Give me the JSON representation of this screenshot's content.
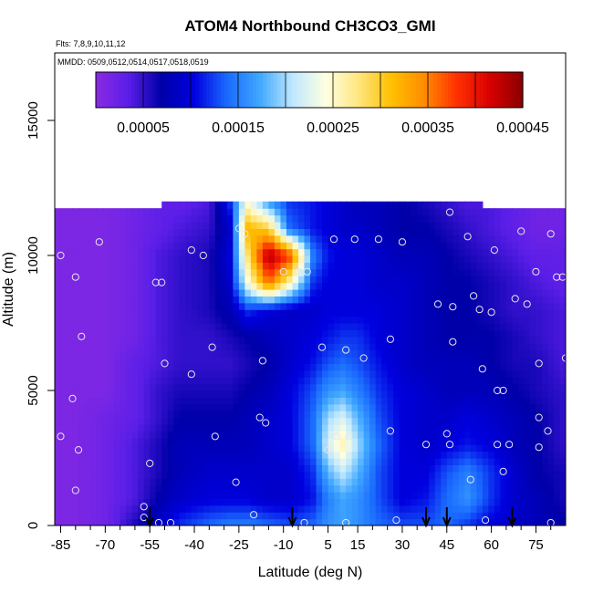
{
  "chart_data": {
    "type": "heatmap",
    "title": "ATOM4 Northbound CH3CO3_GMI",
    "flights_label": "Flts: 7,8,9,10,11,12",
    "dates_label": "MMDD: 0509,0512,0514,0517,0518,0519",
    "xlabel": "Latitude (deg N)",
    "ylabel": "Altitude (m)",
    "xlim": [
      -87,
      85
    ],
    "ylim": [
      0,
      17500
    ],
    "x_ticks": [
      -85,
      -70,
      -55,
      -40,
      -25,
      -10,
      5,
      15,
      30,
      45,
      60,
      75
    ],
    "x_minor_ticks": [
      -80,
      -75,
      -65,
      -60,
      -50,
      -45,
      -35,
      -30,
      -20,
      -15,
      -5,
      0,
      10,
      20,
      25,
      35,
      40,
      50,
      55,
      65,
      70,
      80
    ],
    "y_ticks": [
      0,
      5000,
      10000,
      15000
    ],
    "colorbar": {
      "min": 0.0,
      "max": 0.00045,
      "tick_values": [
        5e-05,
        0.00015,
        0.00025,
        0.00035,
        0.00045
      ],
      "tick_labels": [
        "0.00005",
        "0.00015",
        "0.00025",
        "0.00035",
        "0.00045"
      ],
      "colors": [
        "#8a2be2",
        "#5a1ee8",
        "#0000a8",
        "#0000e0",
        "#1a6aff",
        "#40a8ff",
        "#bfe8ff",
        "#ffffe0",
        "#ffe680",
        "#ffc000",
        "#ff8c00",
        "#ff3000",
        "#d80000",
        "#8a0000"
      ]
    },
    "grid_lat": [
      -87,
      -80,
      -70,
      -60,
      -52,
      -45,
      -35,
      -28,
      -22,
      -15,
      -8,
      0,
      5,
      10,
      15,
      22,
      30,
      38,
      45,
      52,
      60,
      68,
      75,
      85
    ],
    "grid_alt": [
      0,
      1000,
      2000,
      3000,
      4000,
      5000,
      6000,
      7000,
      8000,
      9000,
      10000,
      11000,
      12000
    ],
    "values": [
      [
        1e-05,
        1e-05,
        2e-05,
        6e-05,
        9e-05,
        0.00012,
        0.00014,
        0.00015,
        0.00015,
        0.00014,
        0.00013,
        0.00014,
        0.00016,
        0.00017,
        0.00016,
        0.00014,
        0.00013,
        0.00013,
        0.00014,
        0.00012,
        0.0001,
        9e-05,
        8e-05,
        7e-05
      ],
      [
        1e-05,
        1e-05,
        2e-05,
        4e-05,
        7e-05,
        9e-05,
        0.0001,
        0.0001,
        0.0001,
        9e-05,
        9e-05,
        0.00011,
        0.00015,
        0.00017,
        0.00016,
        0.00013,
        0.0001,
        0.00011,
        0.00014,
        0.00016,
        0.00012,
        9e-05,
        8e-05,
        6e-05
      ],
      [
        1e-05,
        1e-05,
        2e-05,
        4e-05,
        6e-05,
        8e-05,
        9e-05,
        9e-05,
        9e-05,
        9e-05,
        9e-05,
        0.00012,
        0.00018,
        0.00021,
        0.00018,
        0.00013,
        0.0001,
        0.0001,
        0.00013,
        0.00015,
        0.00012,
        9e-05,
        7e-05,
        6e-05
      ],
      [
        1e-05,
        1e-05,
        2e-05,
        4e-05,
        6e-05,
        8e-05,
        8e-05,
        8e-05,
        8e-05,
        9e-05,
        0.0001,
        0.00014,
        0.00022,
        0.00026,
        0.0002,
        0.00014,
        0.0001,
        9e-05,
        0.0001,
        0.00011,
        0.0001,
        8e-05,
        7e-05,
        5e-05
      ],
      [
        1e-05,
        1e-05,
        2e-05,
        3e-05,
        5e-05,
        7e-05,
        7e-05,
        7e-05,
        8e-05,
        9e-05,
        0.0001,
        0.00014,
        0.0002,
        0.00022,
        0.00018,
        0.00013,
        0.0001,
        9e-05,
        9e-05,
        0.0001,
        9e-05,
        8e-05,
        7e-05,
        5e-05
      ],
      [
        1e-05,
        1e-05,
        1e-05,
        3e-05,
        5e-05,
        6e-05,
        6e-05,
        6e-05,
        7e-05,
        8e-05,
        0.0001,
        0.00013,
        0.00016,
        0.00017,
        0.00015,
        0.00012,
        0.0001,
        9e-05,
        8e-05,
        8e-05,
        8e-05,
        7e-05,
        6e-05,
        5e-05
      ],
      [
        1e-05,
        1e-05,
        1e-05,
        3e-05,
        4e-05,
        5e-05,
        5e-05,
        5e-05,
        6e-05,
        7e-05,
        9e-05,
        0.00011,
        0.00013,
        0.00014,
        0.00013,
        0.00011,
        9e-05,
        8e-05,
        8e-05,
        8e-05,
        7e-05,
        6e-05,
        6e-05,
        4e-05
      ],
      [
        1e-05,
        1e-05,
        1e-05,
        2e-05,
        4e-05,
        5e-05,
        5e-05,
        6e-05,
        7e-05,
        8e-05,
        9e-05,
        0.0001,
        0.00011,
        0.00012,
        0.00012,
        0.0001,
        9e-05,
        8e-05,
        7e-05,
        7e-05,
        7e-05,
        6e-05,
        5e-05,
        4e-05
      ],
      [
        1e-05,
        1e-05,
        1e-05,
        2e-05,
        4e-05,
        5e-05,
        6e-05,
        8e-05,
        0.00012,
        0.0001,
        9e-05,
        9e-05,
        0.0001,
        0.0001,
        0.0001,
        0.0001,
        9e-05,
        8e-05,
        7e-05,
        7e-05,
        6e-05,
        5e-05,
        5e-05,
        4e-05
      ],
      [
        1e-05,
        1e-05,
        1e-05,
        2e-05,
        4e-05,
        5e-05,
        6e-05,
        9e-05,
        0.00024,
        0.00036,
        0.00026,
        0.00012,
        0.0001,
        0.0001,
        0.0001,
        9e-05,
        9e-05,
        8e-05,
        7e-05,
        7e-05,
        6e-05,
        5e-05,
        4e-05,
        3e-05
      ],
      [
        1e-05,
        1e-05,
        1e-05,
        2e-05,
        4e-05,
        5e-05,
        6e-05,
        0.0001,
        0.00028,
        0.00044,
        0.00038,
        0.00015,
        0.00011,
        0.0001,
        0.0001,
        9e-05,
        8e-05,
        8e-05,
        7e-05,
        6e-05,
        5e-05,
        4e-05,
        3e-05,
        3e-05
      ],
      [
        1e-05,
        1e-05,
        1e-05,
        2e-05,
        3e-05,
        4e-05,
        5e-05,
        9e-05,
        0.00032,
        0.0003,
        0.00014,
        0.00011,
        0.0001,
        9e-05,
        9e-05,
        8e-05,
        7e-05,
        7e-05,
        6e-05,
        5e-05,
        4e-05,
        3e-05,
        2e-05,
        2e-05
      ],
      [
        null,
        null,
        null,
        null,
        null,
        3e-05,
        4e-05,
        0.00012,
        0.00024,
        0.00016,
        0.00012,
        0.00011,
        0.0001,
        9e-05,
        8e-05,
        8e-05,
        7e-05,
        6e-05,
        5e-05,
        4e-05,
        null,
        null,
        null,
        null
      ]
    ],
    "sample_points": [
      [
        -85,
        10000
      ],
      [
        -80,
        9200
      ],
      [
        -78,
        7000
      ],
      [
        -81,
        4700
      ],
      [
        -79,
        2800
      ],
      [
        -85,
        3300
      ],
      [
        -80,
        1300
      ],
      [
        -72,
        10500
      ],
      [
        -53,
        9000
      ],
      [
        -51,
        9000
      ],
      [
        -50,
        6000
      ],
      [
        -55,
        2300
      ],
      [
        -57,
        700
      ],
      [
        -57,
        300
      ],
      [
        -52,
        100
      ],
      [
        -48,
        100
      ],
      [
        -41,
        5600
      ],
      [
        -41,
        10200
      ],
      [
        -37,
        10000
      ],
      [
        -33,
        3300
      ],
      [
        -34,
        6600
      ],
      [
        -25,
        11000
      ],
      [
        -26,
        1600
      ],
      [
        -23,
        10800
      ],
      [
        -17,
        6100
      ],
      [
        -18,
        4000
      ],
      [
        -16,
        3800
      ],
      [
        -20,
        400
      ],
      [
        -10,
        9400
      ],
      [
        -5,
        9400
      ],
      [
        -2,
        9400
      ],
      [
        -3,
        100
      ],
      [
        3,
        6600
      ],
      [
        5,
        2800
      ],
      [
        7,
        10600
      ],
      [
        11,
        6500
      ],
      [
        14,
        10600
      ],
      [
        17,
        6200
      ],
      [
        8,
        3300
      ],
      [
        12,
        3300
      ],
      [
        11,
        100
      ],
      [
        22,
        10600
      ],
      [
        26,
        3500
      ],
      [
        26,
        6900
      ],
      [
        28,
        200
      ],
      [
        30,
        10500
      ],
      [
        38,
        3000
      ],
      [
        42,
        8200
      ],
      [
        45,
        3400
      ],
      [
        46,
        3000
      ],
      [
        46,
        11600
      ],
      [
        47,
        8100
      ],
      [
        47,
        6800
      ],
      [
        52,
        10700
      ],
      [
        53,
        1700
      ],
      [
        54,
        8500
      ],
      [
        56,
        8000
      ],
      [
        57,
        5800
      ],
      [
        58,
        200
      ],
      [
        60,
        7900
      ],
      [
        61,
        10200
      ],
      [
        62,
        3000
      ],
      [
        62,
        5000
      ],
      [
        64,
        5000
      ],
      [
        64,
        2000
      ],
      [
        66,
        3000
      ],
      [
        68,
        8400
      ],
      [
        70,
        10900
      ],
      [
        72,
        8200
      ],
      [
        75,
        9400
      ],
      [
        76,
        6000
      ],
      [
        76,
        4000
      ],
      [
        76,
        2900
      ],
      [
        79,
        3500
      ],
      [
        80,
        10800
      ],
      [
        82,
        9200
      ],
      [
        80,
        100
      ],
      [
        84,
        9200
      ],
      [
        85,
        6200
      ]
    ],
    "flight_markers": [
      -55,
      -7,
      38,
      45,
      67
    ]
  }
}
